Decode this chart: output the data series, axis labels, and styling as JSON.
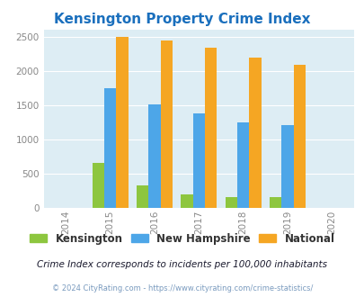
{
  "title": "Kensington Property Crime Index",
  "years": [
    2015,
    2016,
    2017,
    2018,
    2019
  ],
  "kensington": [
    660,
    330,
    200,
    155,
    155
  ],
  "new_hampshire": [
    1750,
    1510,
    1385,
    1250,
    1205
  ],
  "national": [
    2490,
    2445,
    2340,
    2195,
    2085
  ],
  "color_kensington": "#8dc63f",
  "color_nh": "#4da6e8",
  "color_national": "#f5a623",
  "xlim": [
    2013.5,
    2020.5
  ],
  "ylim": [
    0,
    2600
  ],
  "yticks": [
    0,
    500,
    1000,
    1500,
    2000,
    2500
  ],
  "bg_color": "#ddedf4",
  "subtitle": "Crime Index corresponds to incidents per 100,000 inhabitants",
  "copyright": "© 2024 CityRating.com - https://www.cityrating.com/crime-statistics/",
  "title_color": "#1a6fbd",
  "subtitle_color": "#1a1a2e",
  "copyright_color": "#7a9bbf",
  "bar_width": 0.27,
  "xticks": [
    2014,
    2015,
    2016,
    2017,
    2018,
    2019,
    2020
  ]
}
